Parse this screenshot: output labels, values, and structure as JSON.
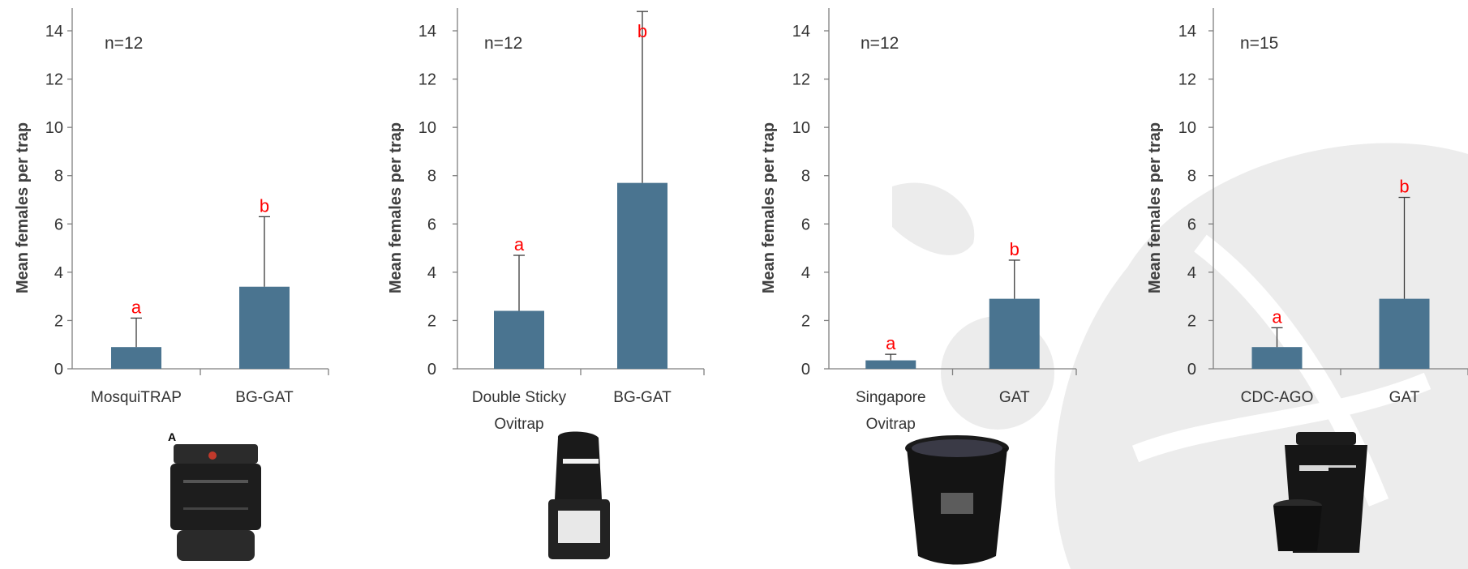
{
  "chart_data": [
    {
      "type": "bar",
      "categories": [
        "MosquiTRAP",
        "BG-GAT"
      ],
      "values": [
        0.9,
        3.4
      ],
      "error_upper": [
        2.1,
        6.3
      ],
      "significance": [
        "a",
        "b"
      ],
      "n_label": "n=12",
      "ylabel": "Mean females per trap",
      "ylim": [
        0,
        14
      ],
      "yticks": [
        0,
        2,
        4,
        6,
        8,
        10,
        12,
        14
      ],
      "bar_color": "#4a7490",
      "trap_photo_label": "A"
    },
    {
      "type": "bar",
      "categories": [
        "Double Sticky\nOvitrap",
        "BG-GAT"
      ],
      "values": [
        2.4,
        7.7
      ],
      "error_upper": [
        4.7,
        14.8
      ],
      "significance": [
        "a",
        "b"
      ],
      "n_label": "n=12",
      "ylabel": "Mean females per trap",
      "ylim": [
        0,
        14
      ],
      "yticks": [
        0,
        2,
        4,
        6,
        8,
        10,
        12,
        14
      ],
      "bar_color": "#4a7490"
    },
    {
      "type": "bar",
      "categories": [
        "Singapore\nOvitrap",
        "GAT"
      ],
      "values": [
        0.35,
        2.9
      ],
      "error_upper": [
        0.6,
        4.5
      ],
      "significance": [
        "a",
        "b"
      ],
      "n_label": "n=12",
      "ylabel": "Mean females per trap",
      "ylim": [
        0,
        14
      ],
      "yticks": [
        0,
        2,
        4,
        6,
        8,
        10,
        12,
        14
      ],
      "bar_color": "#4a7490"
    },
    {
      "type": "bar",
      "categories": [
        "CDC-AGO",
        "GAT"
      ],
      "values": [
        0.9,
        2.9
      ],
      "error_upper": [
        1.7,
        7.1
      ],
      "significance": [
        "a",
        "b"
      ],
      "n_label": "n=15",
      "ylabel": "Mean females per trap",
      "ylim": [
        0,
        14
      ],
      "yticks": [
        0,
        2,
        4,
        6,
        8,
        10,
        12,
        14
      ],
      "bar_color": "#4a7490"
    }
  ]
}
